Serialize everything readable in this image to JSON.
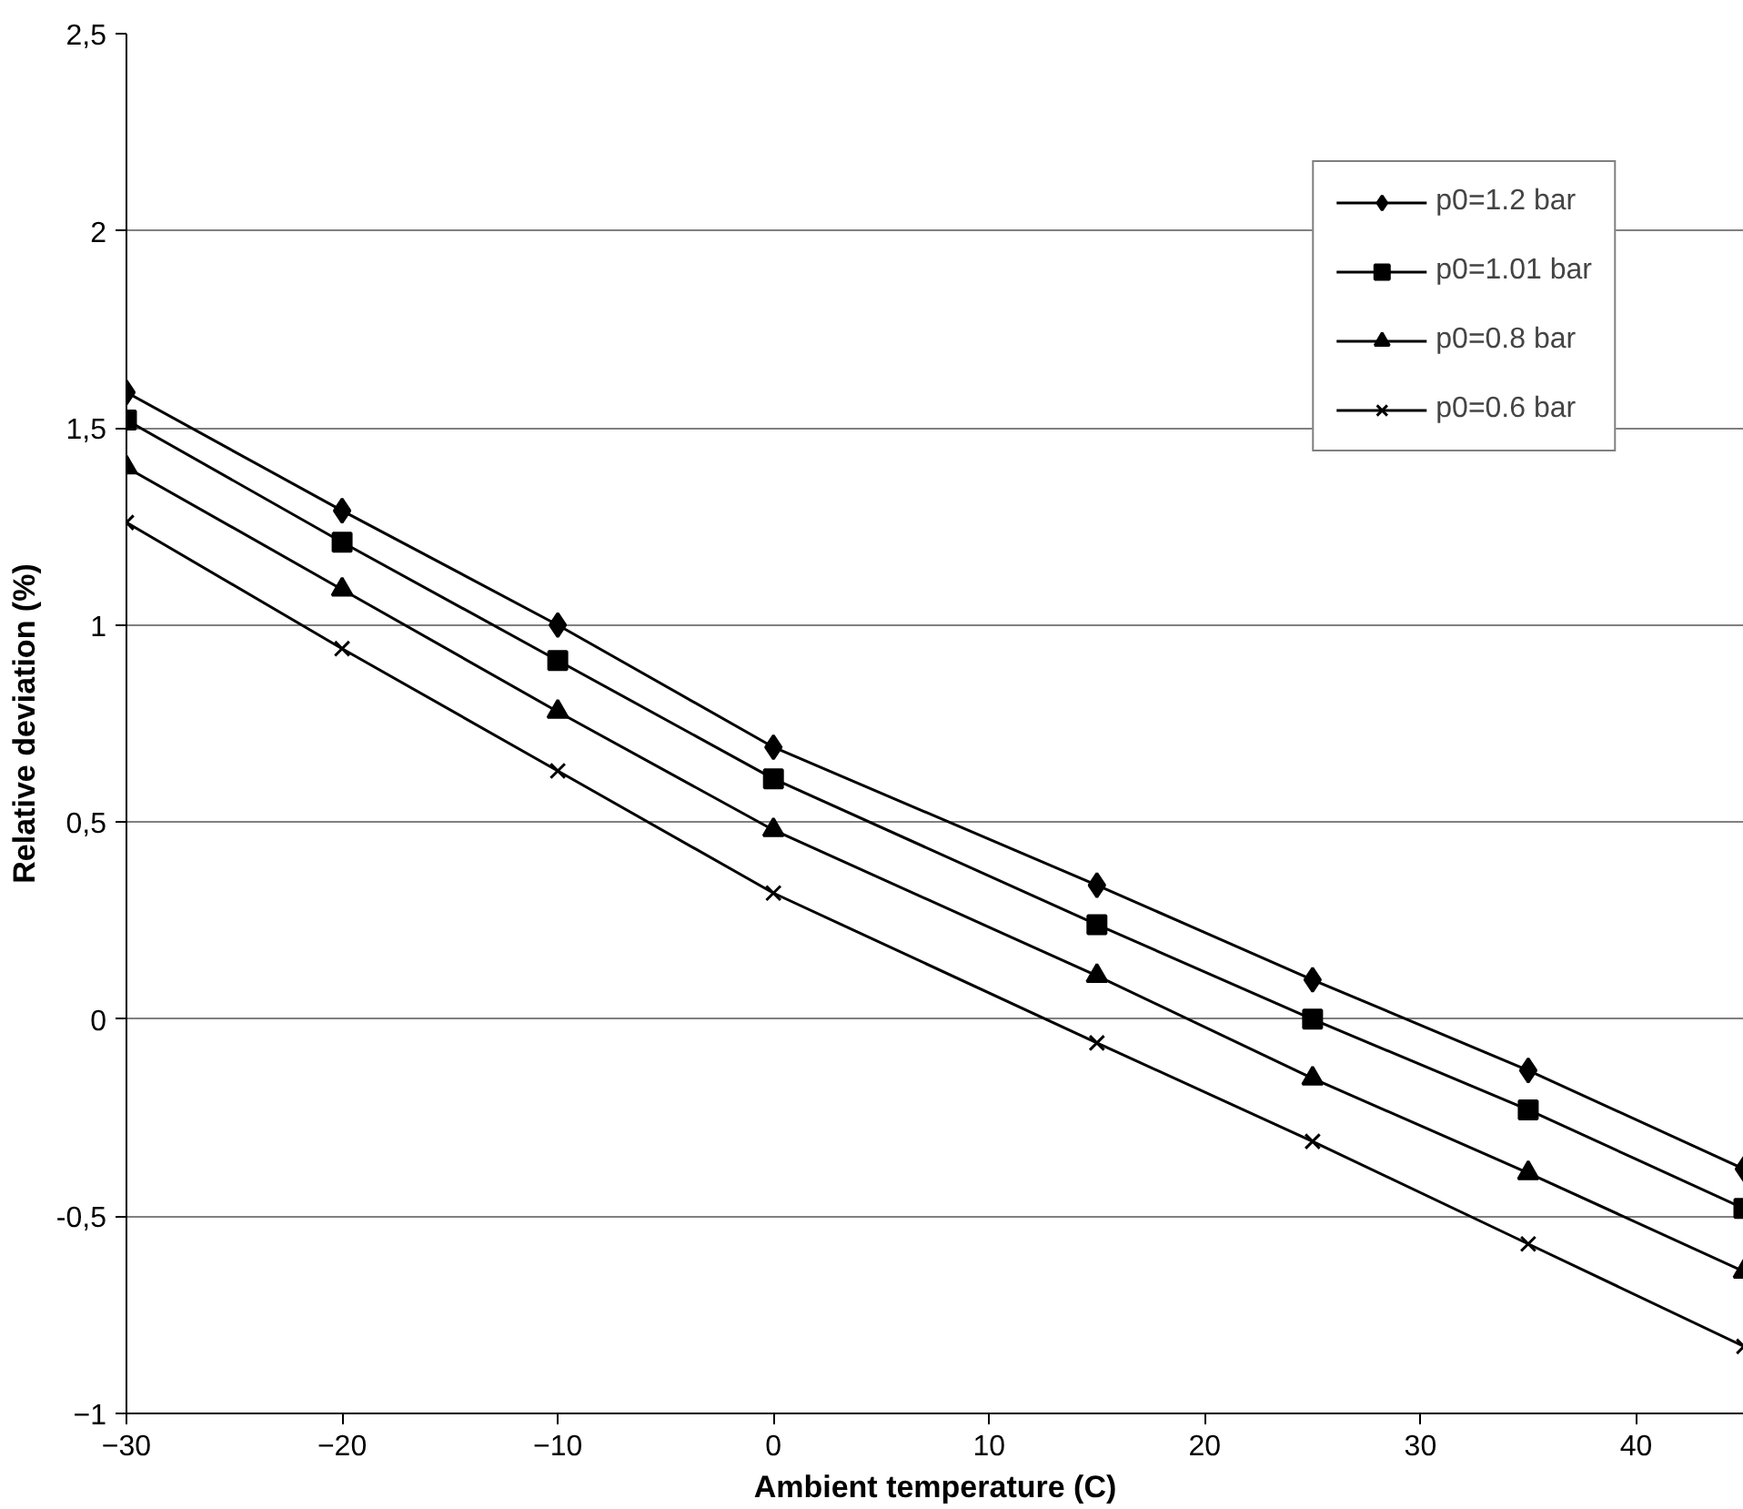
{
  "chart_data": {
    "type": "line",
    "xlabel": "Ambient temperature (C)",
    "ylabel": "Relative deviation (%)",
    "x": [
      -30,
      -20,
      -10,
      0,
      15,
      25,
      35,
      45
    ],
    "series": [
      {
        "name": "p0=1.2 bar",
        "color": "#000000",
        "marker": "diamond",
        "values": [
          1.59,
          1.29,
          1.0,
          0.69,
          0.34,
          0.1,
          -0.13,
          -0.38
        ]
      },
      {
        "name": "p0=1.01 bar",
        "color": "#000000",
        "marker": "square",
        "values": [
          1.52,
          1.21,
          0.91,
          0.61,
          0.24,
          0.0,
          -0.23,
          -0.48
        ]
      },
      {
        "name": "p0=0.8 bar",
        "color": "#000000",
        "marker": "triangle",
        "values": [
          1.4,
          1.09,
          0.78,
          0.48,
          0.11,
          -0.15,
          -0.39,
          -0.64
        ]
      },
      {
        "name": "p0=0.6 bar",
        "color": "#000000",
        "marker": "cross",
        "values": [
          1.26,
          0.94,
          0.63,
          0.32,
          -0.06,
          -0.31,
          -0.57,
          -0.83
        ]
      }
    ],
    "xlim": [
      -30,
      45
    ],
    "xticks": [
      -30,
      -20,
      -10,
      0,
      10,
      20,
      30,
      40
    ],
    "ylim": [
      -1,
      2.5
    ],
    "yticks": [
      -1,
      {
        "value": -0.5,
        "label": "-0,5"
      },
      0,
      {
        "value": 0.5,
        "label": "0,5"
      },
      1,
      {
        "value": 1.5,
        "label": "1,5"
      },
      2,
      {
        "value": 2.5,
        "label": "2,5"
      }
    ],
    "grid": "y",
    "legend": "top right",
    "line_style": "solid"
  }
}
